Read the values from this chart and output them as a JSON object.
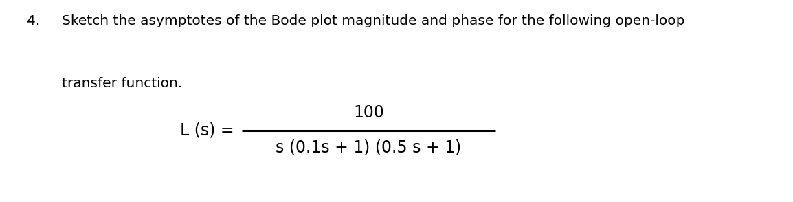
{
  "background_color": "#ffffff",
  "number": "4.",
  "header_line1": "Sketch the asymptotes of the Bode plot magnitude and phase for the following open-loop",
  "header_line2": "transfer function.",
  "lhs": "L (s) =",
  "numerator": "100",
  "denominator": "s (0.1s + 1) (0.5 s + 1)",
  "font_size_header": 14.5,
  "font_size_formula": 17,
  "text_color": "#000000",
  "fig_width": 11.54,
  "fig_height": 2.94,
  "dpi": 100
}
